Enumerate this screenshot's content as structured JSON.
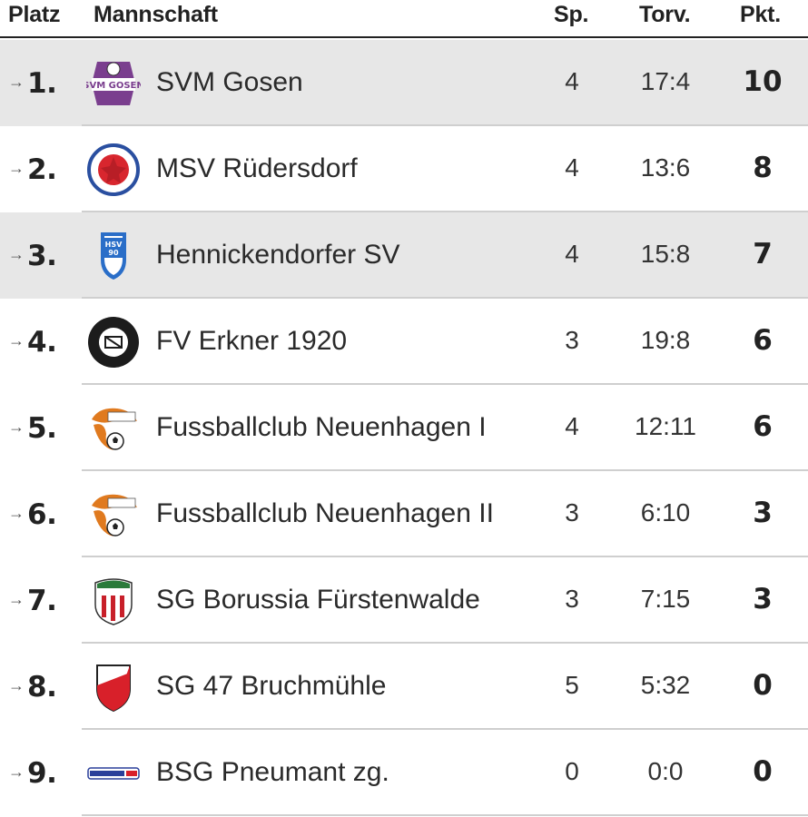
{
  "header": {
    "rank": "Platz",
    "team": "Mannschaft",
    "games": "Sp.",
    "goals": "Torv.",
    "points": "Pkt."
  },
  "colors": {
    "highlight_row": "#e7e7e7",
    "separator": "#cfcfcf",
    "text": "#222222"
  },
  "rows": [
    {
      "trend_icon": "arrow-right-icon",
      "trend": "→",
      "rank": "1.",
      "team": "SVM Gosen",
      "games": "4",
      "goals": "17:4",
      "points": "10",
      "highlighted": true,
      "logo_icon": "svm-gosen-logo"
    },
    {
      "trend_icon": "arrow-right-icon",
      "trend": "→",
      "rank": "2.",
      "team": "MSV Rüdersdorf",
      "games": "4",
      "goals": "13:6",
      "points": "8",
      "highlighted": false,
      "logo_icon": "msv-ruedersdorf-logo"
    },
    {
      "trend_icon": "arrow-right-icon",
      "trend": "→",
      "rank": "3.",
      "team": "Hennickendorfer SV",
      "games": "4",
      "goals": "15:8",
      "points": "7",
      "highlighted": true,
      "logo_icon": "hsv-90-logo"
    },
    {
      "trend_icon": "arrow-right-icon",
      "trend": "→",
      "rank": "4.",
      "team": "FV Erkner 1920",
      "games": "3",
      "goals": "19:8",
      "points": "6",
      "highlighted": false,
      "logo_icon": "fv-erkner-logo"
    },
    {
      "trend_icon": "arrow-right-icon",
      "trend": "→",
      "rank": "5.",
      "team": "Fussballclub Neuenhagen I",
      "games": "4",
      "goals": "12:11",
      "points": "6",
      "highlighted": false,
      "logo_icon": "fc-neuenhagen-logo"
    },
    {
      "trend_icon": "arrow-right-icon",
      "trend": "→",
      "rank": "6.",
      "team": "Fussballclub Neuenhagen II",
      "games": "3",
      "goals": "6:10",
      "points": "3",
      "highlighted": false,
      "logo_icon": "fc-neuenhagen-logo"
    },
    {
      "trend_icon": "arrow-right-icon",
      "trend": "→",
      "rank": "7.",
      "team": "SG Borussia Fürstenwalde",
      "games": "3",
      "goals": "7:15",
      "points": "3",
      "highlighted": false,
      "logo_icon": "borussia-fuerstenwalde-logo"
    },
    {
      "trend_icon": "arrow-right-icon",
      "trend": "→",
      "rank": "8.",
      "team": "SG 47 Bruchmühle",
      "games": "5",
      "goals": "5:32",
      "points": "0",
      "highlighted": false,
      "logo_icon": "sg47-bruchmuehle-logo"
    },
    {
      "trend_icon": "arrow-right-icon",
      "trend": "→",
      "rank": "9.",
      "team": "BSG Pneumant zg.",
      "games": "0",
      "goals": "0:0",
      "points": "0",
      "highlighted": false,
      "logo_icon": "pneumant-logo"
    }
  ]
}
